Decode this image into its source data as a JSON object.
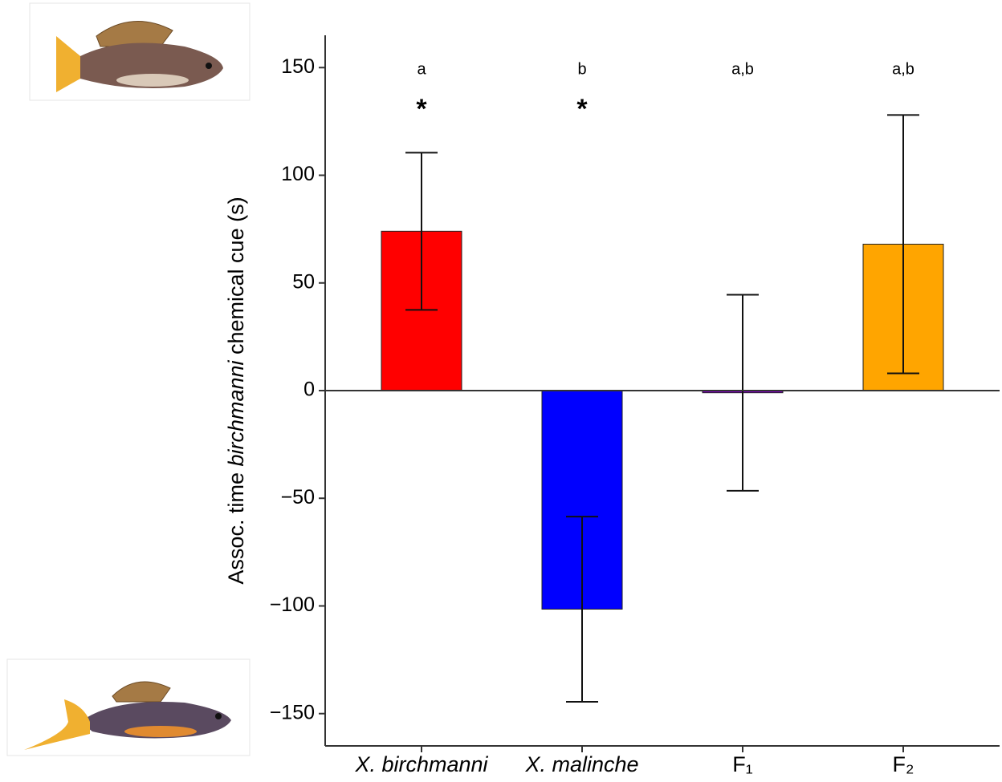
{
  "chart_data": {
    "type": "bar",
    "ylabel": [
      "Assoc. time ",
      "birchmanni",
      " chemical cue (s)"
    ],
    "categories": [
      "X. birchmanni",
      "X. malinche",
      "F₁",
      "F₂"
    ],
    "category_italic": [
      true,
      true,
      false,
      false
    ],
    "values": [
      74,
      -101.5,
      -1,
      68
    ],
    "errors": [
      36.5,
      43,
      45.5,
      60
    ],
    "colors": [
      "#ff0000",
      "#0000ff",
      "#7f00bf",
      "#ffa500"
    ],
    "significance_letters": [
      "a",
      "b",
      "a,b",
      "a,b"
    ],
    "asterisks": [
      "*",
      "*",
      null,
      null
    ],
    "ylim": [
      -165,
      165
    ],
    "yticks": [
      {
        "value": -150,
        "label": "−150"
      },
      {
        "value": -100,
        "label": "−100"
      },
      {
        "value": -50,
        "label": "−50"
      },
      0,
      50,
      100,
      150
    ]
  }
}
